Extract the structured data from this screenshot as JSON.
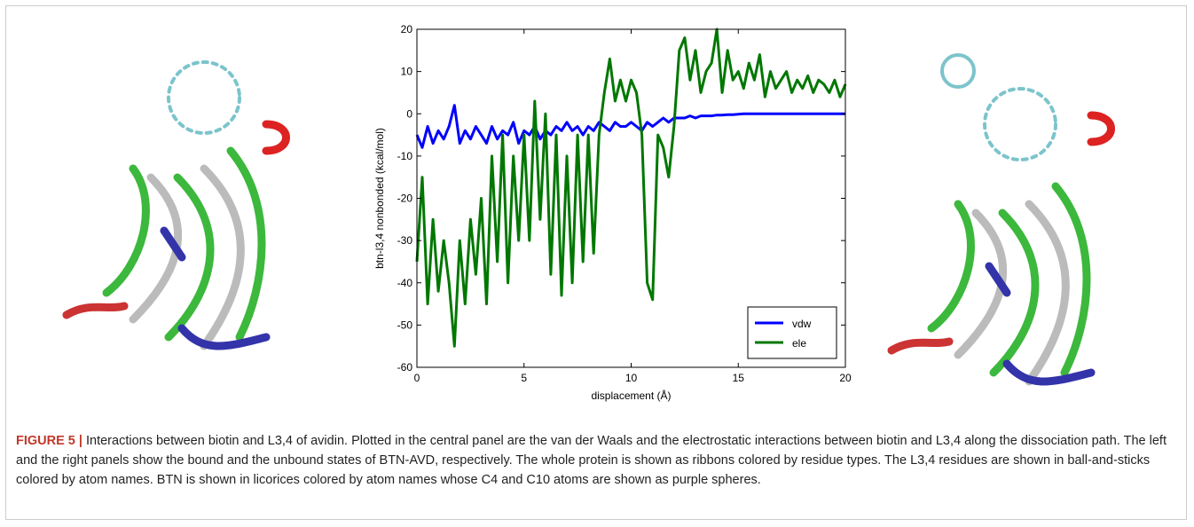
{
  "chart_data": {
    "type": "line",
    "xlabel": "displacement (Å)",
    "ylabel": "btn-l3,4 nonbonded (kcal/mol)",
    "xlim": [
      0,
      20
    ],
    "ylim": [
      -60,
      20
    ],
    "xticks": [
      0,
      5,
      10,
      15,
      20
    ],
    "yticks": [
      -60,
      -50,
      -40,
      -30,
      -20,
      -10,
      0,
      10,
      20
    ],
    "legend": "lower right",
    "x": [
      0,
      0.25,
      0.5,
      0.75,
      1,
      1.25,
      1.5,
      1.75,
      2,
      2.25,
      2.5,
      2.75,
      3,
      3.25,
      3.5,
      3.75,
      4,
      4.25,
      4.5,
      4.75,
      5,
      5.25,
      5.5,
      5.75,
      6,
      6.25,
      6.5,
      6.75,
      7,
      7.25,
      7.5,
      7.75,
      8,
      8.25,
      8.5,
      8.75,
      9,
      9.25,
      9.5,
      9.75,
      10,
      10.25,
      10.5,
      10.75,
      11,
      11.25,
      11.5,
      11.75,
      12,
      12.25,
      12.5,
      12.75,
      13,
      13.25,
      13.5,
      13.75,
      14,
      14.25,
      14.5,
      14.75,
      15,
      15.25,
      15.5,
      15.75,
      16,
      16.25,
      16.5,
      16.75,
      17,
      17.25,
      17.5,
      17.75,
      18,
      18.25,
      18.5,
      18.75,
      19,
      19.25,
      19.5,
      19.75,
      20
    ],
    "series": [
      {
        "name": "vdw",
        "color": "#0000ff",
        "values": [
          -5,
          -8,
          -3,
          -7,
          -4,
          -6,
          -3,
          2,
          -7,
          -4,
          -6,
          -3,
          -5,
          -7,
          -3,
          -6,
          -4,
          -5,
          -2,
          -7,
          -4,
          -5,
          -3,
          -6,
          -4,
          -5,
          -3,
          -4,
          -2,
          -4,
          -3,
          -5,
          -3,
          -4,
          -2,
          -3,
          -4,
          -2,
          -3,
          -3,
          -2,
          -3,
          -4,
          -2,
          -3,
          -2,
          -1,
          -2,
          -1,
          -1,
          -1,
          -0.5,
          -1,
          -0.5,
          -0.5,
          -0.5,
          -0.3,
          -0.3,
          -0.2,
          -0.2,
          -0.1,
          0,
          0,
          0,
          0,
          0,
          0,
          0,
          0,
          0,
          0,
          0,
          0,
          0,
          0,
          0,
          0,
          0,
          0,
          0,
          0
        ]
      },
      {
        "name": "ele",
        "color": "#007700",
        "values": [
          -35,
          -15,
          -45,
          -25,
          -42,
          -30,
          -40,
          -55,
          -30,
          -45,
          -25,
          -38,
          -20,
          -45,
          -10,
          -35,
          -5,
          -40,
          -10,
          -30,
          -5,
          -30,
          3,
          -25,
          0,
          -38,
          -5,
          -43,
          -10,
          -40,
          -5,
          -35,
          -5,
          -33,
          -5,
          5,
          13,
          3,
          8,
          3,
          8,
          5,
          -5,
          -40,
          -44,
          -5,
          -8,
          -15,
          -3,
          15,
          18,
          8,
          15,
          5,
          10,
          12,
          20,
          5,
          15,
          8,
          10,
          6,
          12,
          8,
          14,
          4,
          10,
          6,
          8,
          10,
          5,
          8,
          6,
          9,
          5,
          8,
          7,
          5,
          8,
          4,
          7
        ]
      }
    ]
  },
  "caption": {
    "label": "FIGURE 5 |",
    "text": "Interactions between biotin and L3,4 of avidin. Plotted in the central panel are the van der Waals and the electrostatic interactions between biotin and L3,4 along the dissociation path. The left and the right panels show the bound and the unbound states of BTN-AVD, respectively. The whole protein is shown as ribbons colored by residue types. The L3,4 residues are shown in ball-and-sticks colored by atom names. BTN is shown in licorices colored by atom names whose C4 and C10 atoms are shown as purple spheres."
  }
}
